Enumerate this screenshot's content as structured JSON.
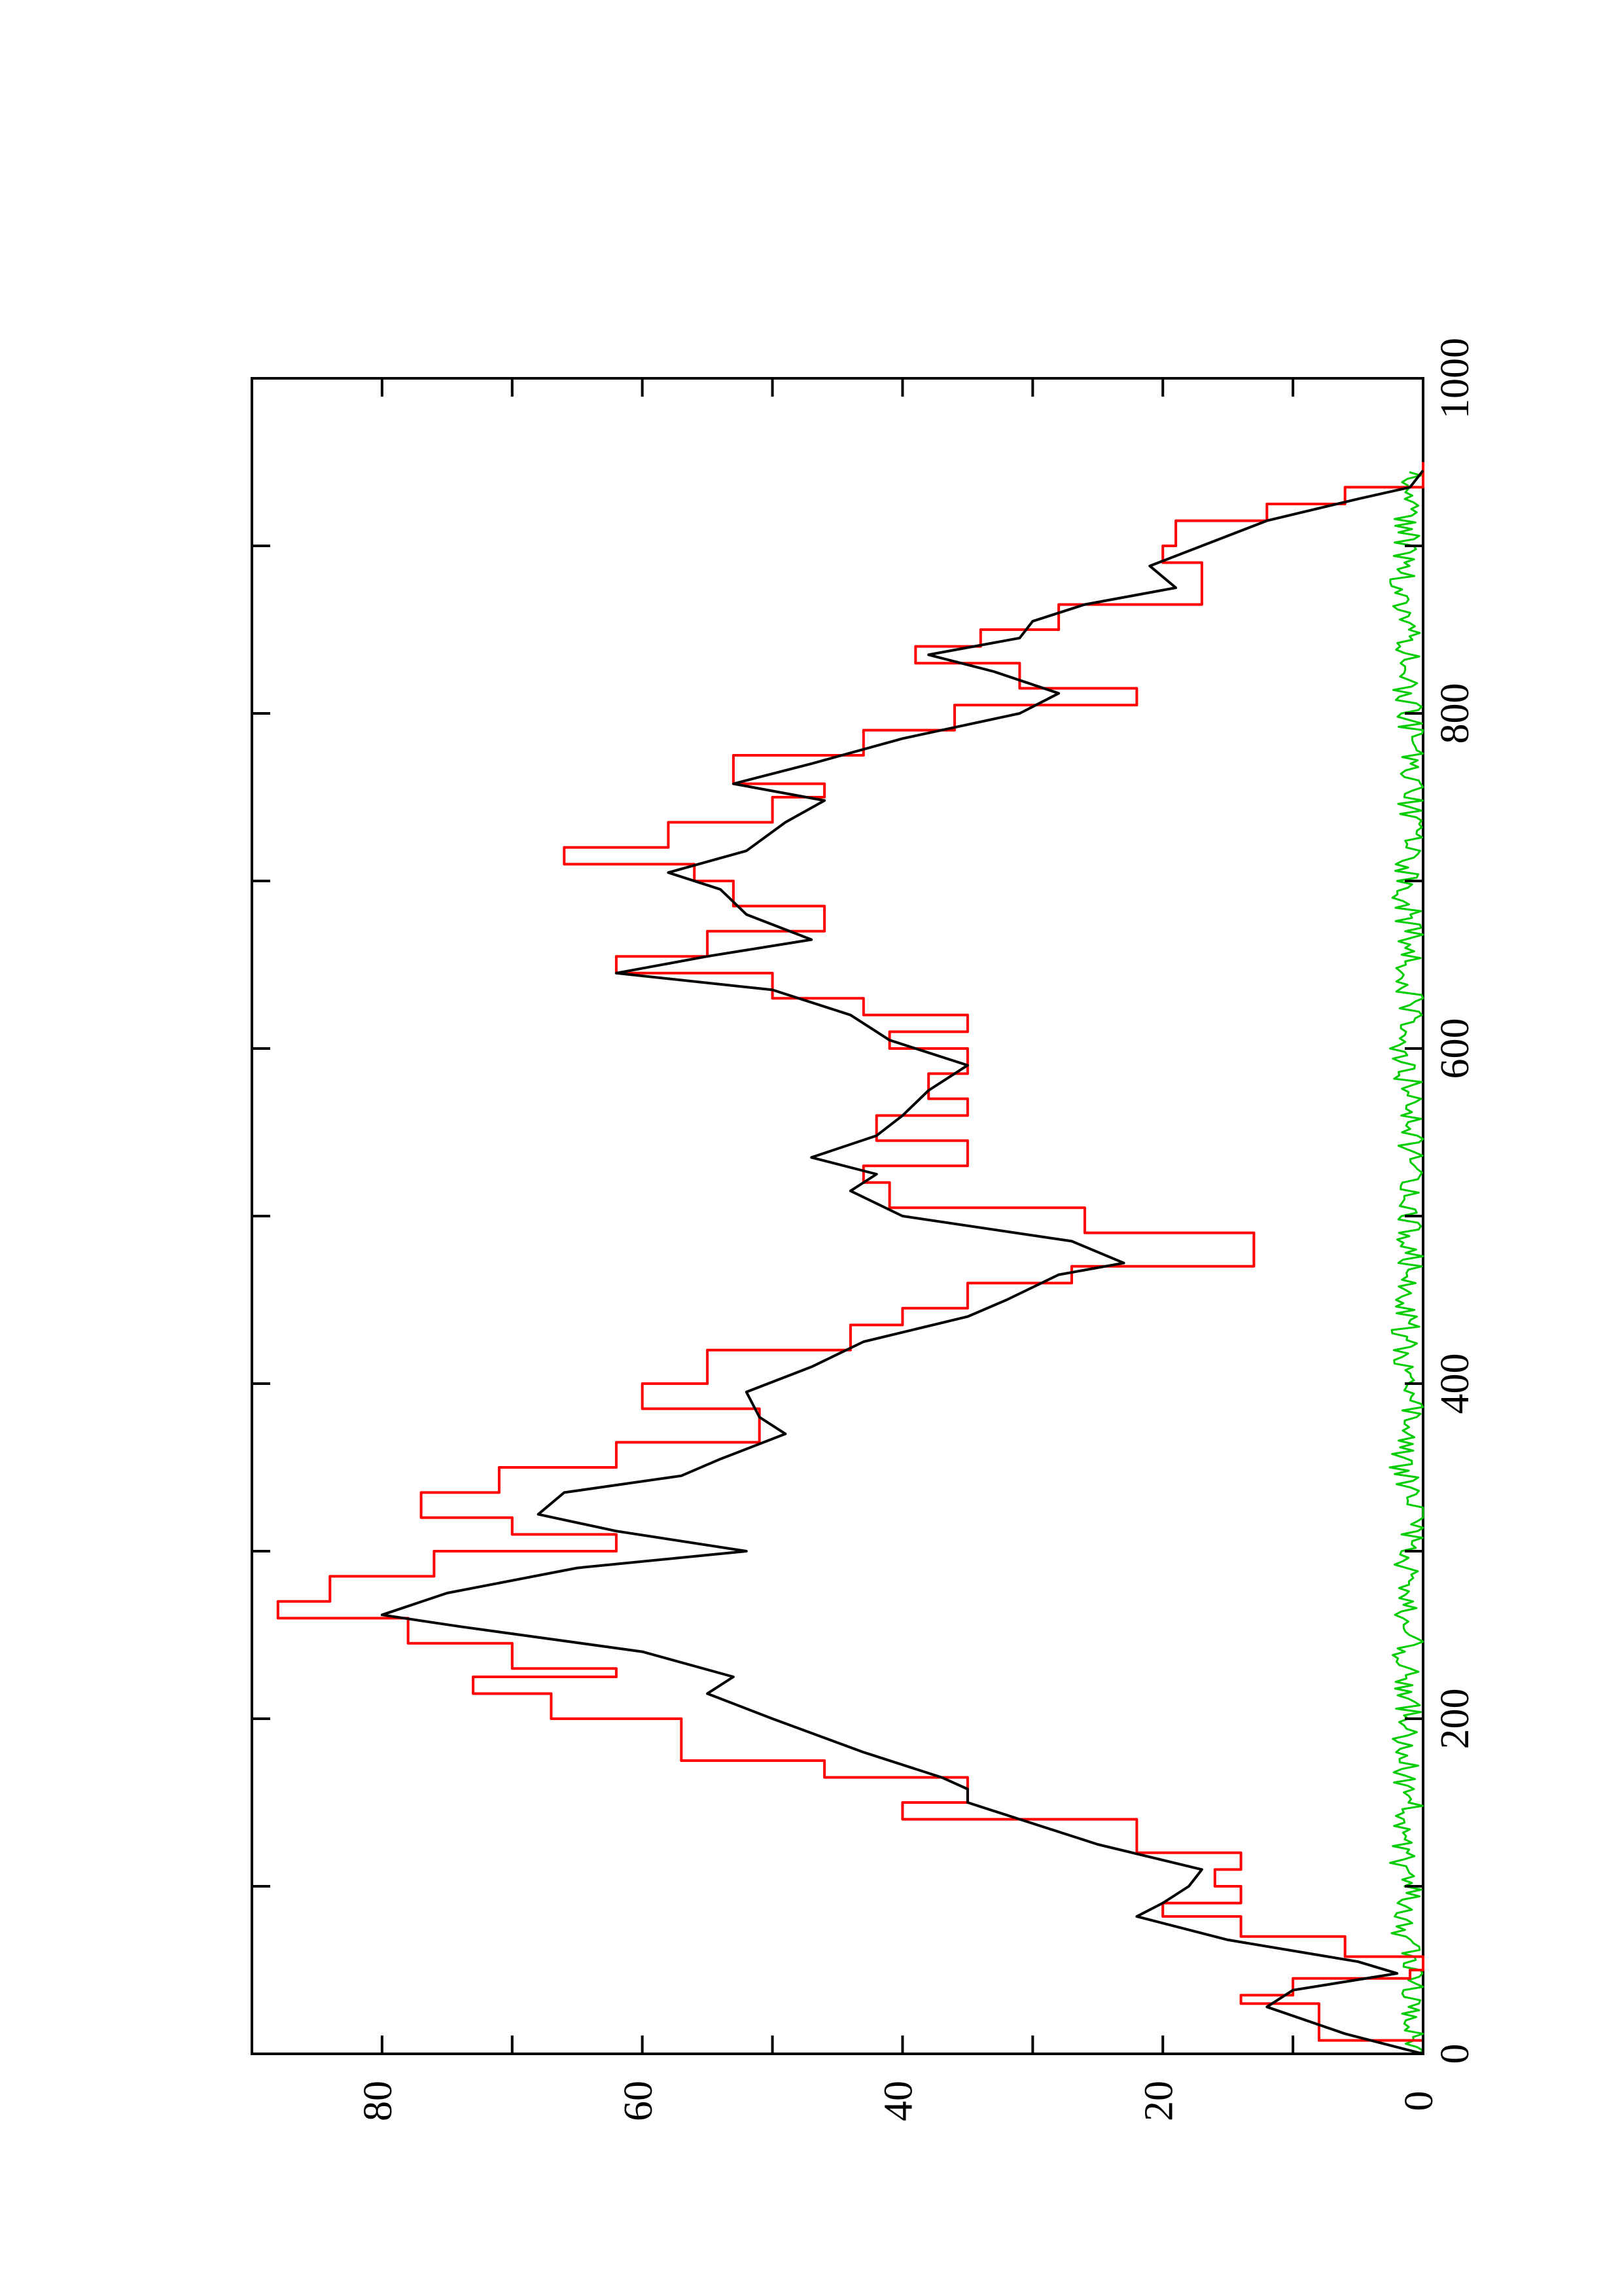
{
  "chart_data": {
    "type": "line",
    "orientation": "rotated-90-ccw",
    "title": "",
    "xlabel": "",
    "ylabel": "",
    "xlim": [
      0,
      1000
    ],
    "ylim": [
      0,
      90
    ],
    "x_ticks": [
      "0",
      "200",
      "400",
      "600",
      "800",
      "1000"
    ],
    "y_ticks": [
      "0",
      "20",
      "40",
      "60",
      "80"
    ],
    "grid": false,
    "legend": "none",
    "series": [
      {
        "color": "#ff0000",
        "style": "step",
        "points": [
          [
            0,
            0
          ],
          [
            8,
            8
          ],
          [
            30,
            14
          ],
          [
            35,
            10
          ],
          [
            45,
            1
          ],
          [
            50,
            0
          ],
          [
            58,
            6
          ],
          [
            70,
            14
          ],
          [
            82,
            20
          ],
          [
            90,
            14
          ],
          [
            100,
            16
          ],
          [
            110,
            14
          ],
          [
            120,
            22
          ],
          [
            140,
            40
          ],
          [
            150,
            35
          ],
          [
            165,
            46
          ],
          [
            175,
            57
          ],
          [
            200,
            67
          ],
          [
            215,
            73
          ],
          [
            225,
            62
          ],
          [
            230,
            70
          ],
          [
            245,
            78
          ],
          [
            260,
            88
          ],
          [
            270,
            84
          ],
          [
            285,
            76
          ],
          [
            300,
            62
          ],
          [
            310,
            70
          ],
          [
            320,
            77
          ],
          [
            335,
            71
          ],
          [
            350,
            62
          ],
          [
            365,
            51
          ],
          [
            385,
            60
          ],
          [
            400,
            55
          ],
          [
            420,
            44
          ],
          [
            435,
            40
          ],
          [
            445,
            35
          ],
          [
            460,
            27
          ],
          [
            470,
            13
          ],
          [
            490,
            26
          ],
          [
            505,
            41
          ],
          [
            520,
            43
          ],
          [
            530,
            35
          ],
          [
            545,
            42
          ],
          [
            560,
            35
          ],
          [
            570,
            38
          ],
          [
            585,
            35
          ],
          [
            600,
            41
          ],
          [
            610,
            35
          ],
          [
            620,
            43
          ],
          [
            630,
            50
          ],
          [
            645,
            62
          ],
          [
            655,
            55
          ],
          [
            670,
            46
          ],
          [
            685,
            53
          ],
          [
            700,
            56
          ],
          [
            710,
            66
          ],
          [
            720,
            58
          ],
          [
            735,
            50
          ],
          [
            750,
            46
          ],
          [
            758,
            53
          ],
          [
            775,
            43
          ],
          [
            790,
            36
          ],
          [
            805,
            22
          ],
          [
            815,
            31
          ],
          [
            830,
            39
          ],
          [
            840,
            34
          ],
          [
            850,
            28
          ],
          [
            865,
            17
          ],
          [
            875,
            17
          ],
          [
            890,
            20
          ],
          [
            900,
            19
          ],
          [
            915,
            12
          ],
          [
            925,
            6
          ],
          [
            935,
            0
          ],
          [
            950,
            0
          ]
        ]
      },
      {
        "color": "#000000",
        "style": "line",
        "points": [
          [
            0,
            0
          ],
          [
            12,
            6
          ],
          [
            28,
            12
          ],
          [
            38,
            10
          ],
          [
            48,
            2
          ],
          [
            55,
            5
          ],
          [
            68,
            15
          ],
          [
            82,
            22
          ],
          [
            90,
            20
          ],
          [
            100,
            18
          ],
          [
            110,
            17
          ],
          [
            125,
            25
          ],
          [
            140,
            31
          ],
          [
            150,
            35
          ],
          [
            158,
            35
          ],
          [
            165,
            37
          ],
          [
            180,
            43
          ],
          [
            200,
            50
          ],
          [
            215,
            55
          ],
          [
            225,
            53
          ],
          [
            240,
            60
          ],
          [
            255,
            74
          ],
          [
            262,
            80
          ],
          [
            275,
            75
          ],
          [
            290,
            65
          ],
          [
            300,
            52
          ],
          [
            312,
            62
          ],
          [
            322,
            68
          ],
          [
            335,
            66
          ],
          [
            345,
            57
          ],
          [
            355,
            54
          ],
          [
            370,
            49
          ],
          [
            380,
            51
          ],
          [
            395,
            52
          ],
          [
            410,
            47
          ],
          [
            425,
            43
          ],
          [
            440,
            35
          ],
          [
            450,
            32
          ],
          [
            465,
            28
          ],
          [
            472,
            23
          ],
          [
            485,
            27
          ],
          [
            500,
            40
          ],
          [
            515,
            44
          ],
          [
            525,
            42
          ],
          [
            535,
            47
          ],
          [
            548,
            42
          ],
          [
            560,
            40
          ],
          [
            575,
            38
          ],
          [
            590,
            35
          ],
          [
            605,
            41
          ],
          [
            620,
            44
          ],
          [
            635,
            50
          ],
          [
            645,
            62
          ],
          [
            655,
            55
          ],
          [
            665,
            47
          ],
          [
            680,
            52
          ],
          [
            695,
            54
          ],
          [
            705,
            58
          ],
          [
            718,
            52
          ],
          [
            735,
            49
          ],
          [
            748,
            46
          ],
          [
            758,
            53
          ],
          [
            770,
            47
          ],
          [
            785,
            40
          ],
          [
            800,
            31
          ],
          [
            812,
            28
          ],
          [
            825,
            33
          ],
          [
            835,
            38
          ],
          [
            845,
            31
          ],
          [
            855,
            30
          ],
          [
            865,
            26
          ],
          [
            875,
            19
          ],
          [
            888,
            21
          ],
          [
            900,
            17
          ],
          [
            915,
            12
          ],
          [
            928,
            5
          ],
          [
            935,
            1
          ],
          [
            945,
            0
          ]
        ]
      },
      {
        "color": "#00cc00",
        "style": "noise",
        "points": [
          [
            0,
            0
          ],
          [
            25,
            1
          ],
          [
            50,
            0.5
          ],
          [
            75,
            1.5
          ],
          [
            100,
            1
          ],
          [
            125,
            2
          ],
          [
            150,
            1
          ],
          [
            175,
            1.5
          ],
          [
            200,
            1
          ],
          [
            225,
            1.5
          ],
          [
            250,
            1
          ],
          [
            275,
            1.5
          ],
          [
            300,
            1
          ],
          [
            325,
            0.5
          ],
          [
            350,
            1.5
          ],
          [
            375,
            1
          ],
          [
            400,
            1
          ],
          [
            425,
            1.5
          ],
          [
            450,
            1
          ],
          [
            475,
            1
          ],
          [
            500,
            1
          ],
          [
            525,
            1
          ],
          [
            550,
            1
          ],
          [
            575,
            1
          ],
          [
            600,
            1.5
          ],
          [
            625,
            1
          ],
          [
            650,
            1
          ],
          [
            675,
            1
          ],
          [
            700,
            1.5
          ],
          [
            725,
            1
          ],
          [
            750,
            1
          ],
          [
            775,
            1
          ],
          [
            800,
            1
          ],
          [
            825,
            1.5
          ],
          [
            850,
            1
          ],
          [
            875,
            1.5
          ],
          [
            900,
            1.5
          ],
          [
            925,
            1
          ],
          [
            945,
            0.5
          ]
        ]
      }
    ]
  }
}
